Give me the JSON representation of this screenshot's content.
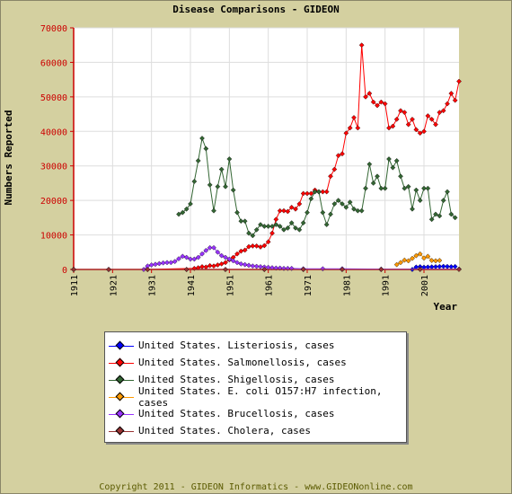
{
  "title": "Disease Comparisons - GIDEON",
  "footer": "Copyright 2011 - GIDEON Informatics - www.GIDEONonline.com",
  "chart_data": {
    "type": "line",
    "title": "Disease Comparisons - GIDEON",
    "xlabel": "Year",
    "ylabel": "Numbers Reported",
    "xlim": [
      1911,
      2010
    ],
    "ylim": [
      0,
      70000
    ],
    "xticks": [
      "1911",
      "1921",
      "1931",
      "1941",
      "1951",
      "1961",
      "1971",
      "1981",
      "1991",
      "2001"
    ],
    "yticks": [
      "0",
      "10000",
      "20000",
      "30000",
      "40000",
      "50000",
      "60000",
      "70000"
    ],
    "grid": true,
    "legend_position": "bottom",
    "series": [
      {
        "name": "United States. Listeriosis, cases",
        "color": "#0000ff",
        "points": [
          [
            1911,
            0
          ],
          [
            1920,
            0
          ],
          [
            1930,
            0
          ],
          [
            1940,
            0
          ],
          [
            1950,
            0
          ],
          [
            1960,
            0
          ],
          [
            1970,
            0
          ],
          [
            1980,
            0
          ],
          [
            1990,
            0
          ],
          [
            1998,
            0
          ],
          [
            1999,
            700
          ],
          [
            2000,
            800
          ],
          [
            2001,
            650
          ],
          [
            2002,
            700
          ],
          [
            2003,
            750
          ],
          [
            2004,
            800
          ],
          [
            2005,
            850
          ],
          [
            2006,
            900
          ],
          [
            2007,
            850
          ],
          [
            2008,
            800
          ],
          [
            2009,
            850
          ]
        ]
      },
      {
        "name": "United States. Salmonellosis, cases",
        "color": "#ff0000",
        "points": [
          [
            1911,
            0
          ],
          [
            1930,
            0
          ],
          [
            1942,
            300
          ],
          [
            1943,
            500
          ],
          [
            1944,
            800
          ],
          [
            1945,
            700
          ],
          [
            1946,
            1100
          ],
          [
            1947,
            1000
          ],
          [
            1948,
            1300
          ],
          [
            1949,
            1600
          ],
          [
            1950,
            2000
          ],
          [
            1951,
            2800
          ],
          [
            1952,
            3500
          ],
          [
            1953,
            4500
          ],
          [
            1954,
            5300
          ],
          [
            1955,
            5600
          ],
          [
            1956,
            6600
          ],
          [
            1957,
            6800
          ],
          [
            1958,
            6800
          ],
          [
            1959,
            6500
          ],
          [
            1960,
            6900
          ],
          [
            1961,
            8000
          ],
          [
            1962,
            10500
          ],
          [
            1963,
            14500
          ],
          [
            1964,
            17000
          ],
          [
            1965,
            17000
          ],
          [
            1966,
            16800
          ],
          [
            1967,
            18000
          ],
          [
            1968,
            17500
          ],
          [
            1969,
            19000
          ],
          [
            1970,
            22000
          ],
          [
            1971,
            22000
          ],
          [
            1972,
            22000
          ],
          [
            1973,
            23000
          ],
          [
            1974,
            22500
          ],
          [
            1975,
            22500
          ],
          [
            1976,
            22500
          ],
          [
            1977,
            27000
          ],
          [
            1978,
            29000
          ],
          [
            1979,
            33000
          ],
          [
            1980,
            33500
          ],
          [
            1981,
            39500
          ],
          [
            1982,
            41000
          ],
          [
            1983,
            44000
          ],
          [
            1984,
            41000
          ],
          [
            1985,
            65000
          ],
          [
            1986,
            50000
          ],
          [
            1987,
            51000
          ],
          [
            1988,
            48500
          ],
          [
            1989,
            47500
          ],
          [
            1990,
            48500
          ],
          [
            1991,
            48000
          ],
          [
            1992,
            41000
          ],
          [
            1993,
            41500
          ],
          [
            1994,
            43500
          ],
          [
            1995,
            46000
          ],
          [
            1996,
            45500
          ],
          [
            1997,
            42000
          ],
          [
            1998,
            43500
          ],
          [
            1999,
            40500
          ],
          [
            2000,
            39500
          ],
          [
            2001,
            40000
          ],
          [
            2002,
            44500
          ],
          [
            2003,
            43500
          ],
          [
            2004,
            42000
          ],
          [
            2005,
            45500
          ],
          [
            2006,
            46000
          ],
          [
            2007,
            48000
          ],
          [
            2008,
            51000
          ],
          [
            2009,
            49000
          ],
          [
            2010,
            54500
          ]
        ]
      },
      {
        "name": "United States. Shigellosis, cases",
        "color": "#336633",
        "points": [
          [
            1938,
            16000
          ],
          [
            1939,
            16500
          ],
          [
            1940,
            17500
          ],
          [
            1941,
            19000
          ],
          [
            1942,
            25500
          ],
          [
            1943,
            31500
          ],
          [
            1944,
            38000
          ],
          [
            1945,
            35000
          ],
          [
            1946,
            24500
          ],
          [
            1947,
            17000
          ],
          [
            1948,
            24000
          ],
          [
            1949,
            29000
          ],
          [
            1950,
            24000
          ],
          [
            1951,
            32000
          ],
          [
            1952,
            23000
          ],
          [
            1953,
            16500
          ],
          [
            1954,
            14000
          ],
          [
            1955,
            14000
          ],
          [
            1956,
            10500
          ],
          [
            1957,
            9800
          ],
          [
            1958,
            11500
          ],
          [
            1959,
            13000
          ],
          [
            1960,
            12500
          ],
          [
            1961,
            12500
          ],
          [
            1962,
            12500
          ],
          [
            1963,
            13000
          ],
          [
            1964,
            12500
          ],
          [
            1965,
            11500
          ],
          [
            1966,
            12000
          ],
          [
            1967,
            13500
          ],
          [
            1968,
            12000
          ],
          [
            1969,
            11500
          ],
          [
            1970,
            13500
          ],
          [
            1971,
            16500
          ],
          [
            1972,
            20500
          ],
          [
            1973,
            22500
          ],
          [
            1974,
            22500
          ],
          [
            1975,
            16500
          ],
          [
            1976,
            13000
          ],
          [
            1977,
            16000
          ],
          [
            1978,
            19000
          ],
          [
            1979,
            20000
          ],
          [
            1980,
            19000
          ],
          [
            1981,
            18000
          ],
          [
            1982,
            19500
          ],
          [
            1983,
            17500
          ],
          [
            1984,
            17000
          ],
          [
            1985,
            17000
          ],
          [
            1986,
            23500
          ],
          [
            1987,
            30500
          ],
          [
            1988,
            25000
          ],
          [
            1989,
            27000
          ],
          [
            1990,
            23500
          ],
          [
            1991,
            23500
          ],
          [
            1992,
            32000
          ],
          [
            1993,
            29500
          ],
          [
            1994,
            31500
          ],
          [
            1995,
            27000
          ],
          [
            1996,
            23500
          ],
          [
            1997,
            24000
          ],
          [
            1998,
            17500
          ],
          [
            1999,
            23000
          ],
          [
            2000,
            20000
          ],
          [
            2001,
            23500
          ],
          [
            2002,
            23500
          ],
          [
            2003,
            14500
          ],
          [
            2004,
            16000
          ],
          [
            2005,
            15500
          ],
          [
            2006,
            20000
          ],
          [
            2007,
            22500
          ],
          [
            2008,
            16000
          ],
          [
            2009,
            15000
          ]
        ]
      },
      {
        "name": "United States. E. coli O157:H7 infection, cases",
        "color": "#ff9900",
        "points": [
          [
            1994,
            1400
          ],
          [
            1995,
            2000
          ],
          [
            1996,
            2700
          ],
          [
            1997,
            2500
          ],
          [
            1998,
            3200
          ],
          [
            1999,
            4000
          ],
          [
            2000,
            4500
          ],
          [
            2001,
            3300
          ],
          [
            2002,
            3800
          ],
          [
            2003,
            2600
          ],
          [
            2004,
            2500
          ],
          [
            2005,
            2600
          ]
        ]
      },
      {
        "name": "United States. Brucellosis, cases",
        "color": "#9933ff",
        "points": [
          [
            1911,
            0
          ],
          [
            1920,
            0
          ],
          [
            1929,
            0
          ],
          [
            1930,
            1000
          ],
          [
            1931,
            1300
          ],
          [
            1932,
            1500
          ],
          [
            1933,
            1700
          ],
          [
            1934,
            1900
          ],
          [
            1935,
            2000
          ],
          [
            1936,
            2000
          ],
          [
            1937,
            2300
          ],
          [
            1938,
            3100
          ],
          [
            1939,
            3800
          ],
          [
            1940,
            3500
          ],
          [
            1941,
            3000
          ],
          [
            1942,
            3000
          ],
          [
            1943,
            3500
          ],
          [
            1944,
            4500
          ],
          [
            1945,
            5500
          ],
          [
            1946,
            6300
          ],
          [
            1947,
            6300
          ],
          [
            1948,
            5000
          ],
          [
            1949,
            4000
          ],
          [
            1950,
            3500
          ],
          [
            1951,
            3000
          ],
          [
            1952,
            2500
          ],
          [
            1953,
            2000
          ],
          [
            1954,
            1600
          ],
          [
            1955,
            1400
          ],
          [
            1956,
            1200
          ],
          [
            1957,
            1000
          ],
          [
            1958,
            900
          ],
          [
            1959,
            800
          ],
          [
            1960,
            700
          ],
          [
            1961,
            600
          ],
          [
            1962,
            500
          ],
          [
            1963,
            400
          ],
          [
            1964,
            400
          ],
          [
            1965,
            300
          ],
          [
            1966,
            300
          ],
          [
            1967,
            300
          ],
          [
            1970,
            200
          ],
          [
            1975,
            200
          ],
          [
            1980,
            200
          ],
          [
            1990,
            100
          ],
          [
            2000,
            100
          ],
          [
            2010,
            100
          ]
        ]
      },
      {
        "name": "United States. Cholera, cases",
        "color": "#993333",
        "points": [
          [
            1911,
            0
          ],
          [
            1920,
            0
          ],
          [
            1930,
            0
          ],
          [
            1940,
            0
          ],
          [
            1950,
            0
          ],
          [
            1960,
            0
          ],
          [
            1970,
            0
          ],
          [
            1980,
            0
          ],
          [
            1990,
            0
          ],
          [
            2000,
            0
          ],
          [
            2010,
            0
          ]
        ]
      }
    ]
  }
}
